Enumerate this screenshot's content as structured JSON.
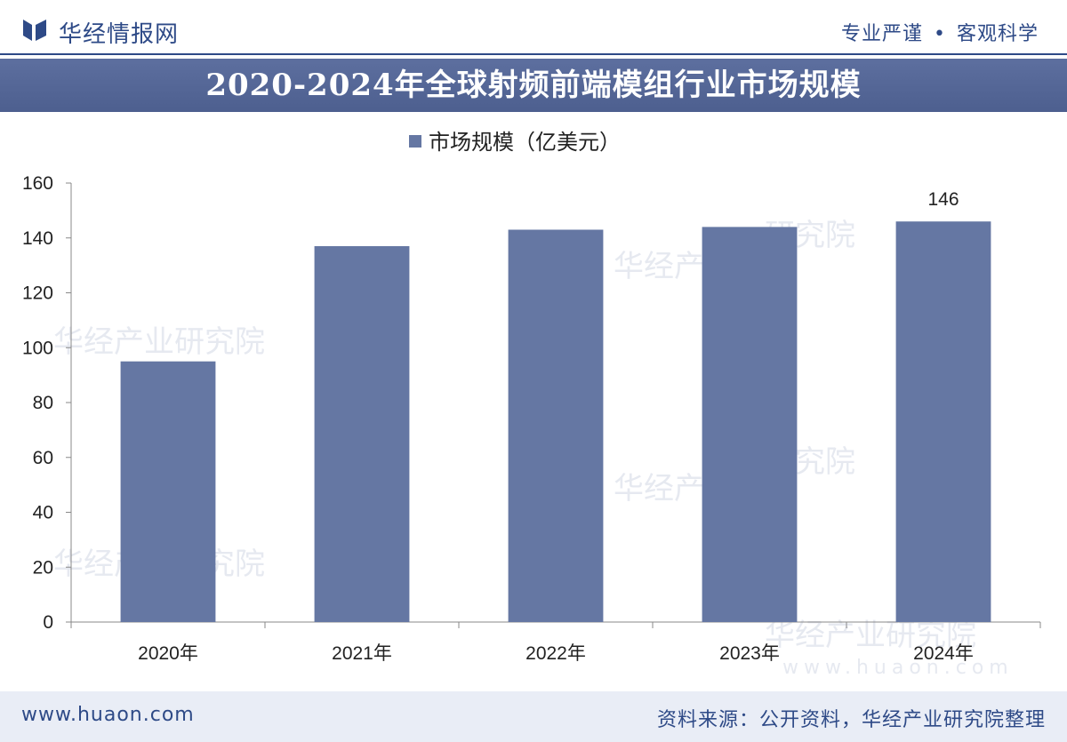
{
  "header": {
    "brand": "华经情报网",
    "slogan_left": "专业严谨",
    "slogan_dot": "•",
    "slogan_right": "客观科学"
  },
  "colors": {
    "brand": "#2e4a87",
    "bar": "#6577a3",
    "title_bg": "#5d6f9f"
  },
  "watermarks": [
    "华经产业研究院",
    "华经产",
    "研究院",
    "www.huaon.com"
  ],
  "chart_data": {
    "type": "bar",
    "title": "2020-2024年全球射频前端模组行业市场规模",
    "categories": [
      "2020年",
      "2021年",
      "2022年",
      "2023年",
      "2024年"
    ],
    "series": [
      {
        "name": "市场规模（亿美元）",
        "values": [
          95,
          137,
          143,
          144,
          146
        ]
      }
    ],
    "data_labels": [
      null,
      null,
      null,
      null,
      "146"
    ],
    "yticks": [
      "0",
      "20",
      "40",
      "60",
      "80",
      "100",
      "120",
      "140",
      "160"
    ],
    "ylim": [
      0,
      160
    ],
    "xlabel": "",
    "ylabel": "",
    "legend": "top-center",
    "grid": false
  },
  "footer": {
    "url": "www.huaon.com",
    "source": "资料来源：公开资料，华经产业研究院整理"
  }
}
